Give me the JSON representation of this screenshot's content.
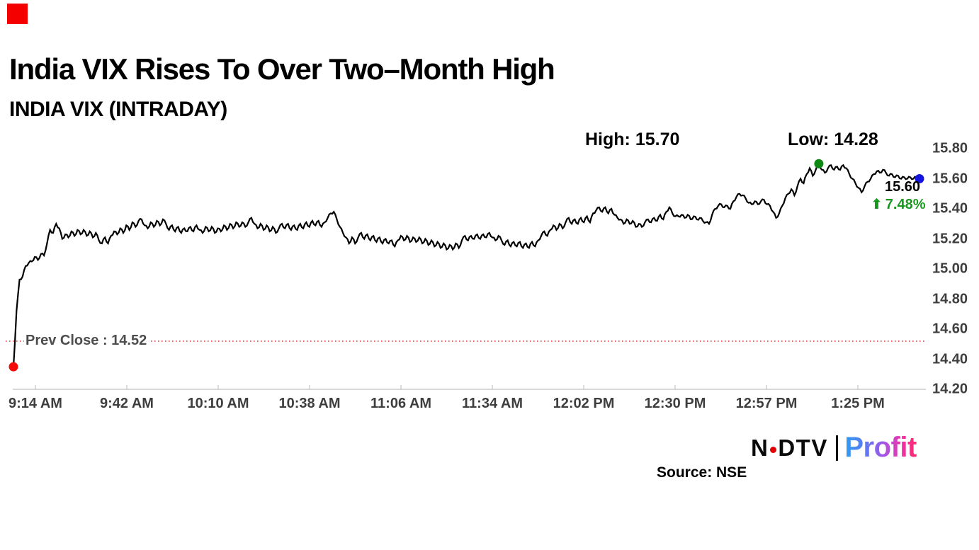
{
  "badge": {
    "color": "#f50000"
  },
  "header": {
    "title": "India VIX Rises To Over Two–Month High",
    "subtitle": "INDIA VIX (INTRADAY)"
  },
  "stats": {
    "high_label": "High: 15.70",
    "low_label": "Low: 14.28"
  },
  "annotation": {
    "last_price": "15.60",
    "arrow": "⬆",
    "change_pct": "7.48%"
  },
  "prev_close_label": "Prev Close : 14.52",
  "footer": {
    "source": "Source: NSE",
    "logo": {
      "n": "N",
      "dtv": "DTV",
      "profit": "Profit"
    }
  },
  "chart_data": {
    "type": "line",
    "title": "INDIA VIX (INTRADAY)",
    "series_name": "India VIX",
    "x_labels": [
      "9:14 AM",
      "9:42 AM",
      "10:10 AM",
      "10:38 AM",
      "11:06 AM",
      "11:34 AM",
      "12:02 PM",
      "12:30 PM",
      "12:57 PM",
      "1:25 PM"
    ],
    "y_ticks": [
      "15.80",
      "15.60",
      "15.40",
      "15.20",
      "15.00",
      "14.80",
      "14.60",
      "14.40",
      "14.20"
    ],
    "y_range": [
      14.2,
      15.8
    ],
    "prev_close": 14.52,
    "open": 14.35,
    "high": 15.7,
    "low": 14.28,
    "last": 15.6,
    "change_pct": 7.48,
    "grid": false,
    "legend": false,
    "line_color": "#000000",
    "axis_color": "#d8d8d8",
    "prev_close_line_color": "#e53535",
    "marker_colors": {
      "open": "#f50a0a",
      "high": "#0e8a14",
      "last": "#1414dd"
    },
    "values": [
      14.35,
      14.72,
      14.93,
      14.95,
      15.02,
      15.04,
      15.05,
      15.08,
      15.06,
      15.1,
      15.09,
      15.17,
      15.26,
      15.24,
      15.3,
      15.27,
      15.2,
      15.23,
      15.21,
      15.25,
      15.22,
      15.26,
      15.23,
      15.26,
      15.22,
      15.25,
      15.21,
      15.24,
      15.19,
      15.17,
      15.21,
      15.17,
      15.22,
      15.25,
      15.23,
      15.27,
      15.24,
      15.29,
      15.26,
      15.31,
      15.28,
      15.32,
      15.33,
      15.29,
      15.27,
      15.31,
      15.28,
      15.32,
      15.29,
      15.33,
      15.3,
      15.26,
      15.29,
      15.25,
      15.28,
      15.24,
      15.27,
      15.25,
      15.28,
      15.25,
      15.29,
      15.26,
      15.24,
      15.28,
      15.25,
      15.28,
      15.24,
      15.27,
      15.25,
      15.29,
      15.26,
      15.3,
      15.27,
      15.31,
      15.28,
      15.31,
      15.28,
      15.31,
      15.34,
      15.3,
      15.27,
      15.3,
      15.26,
      15.29,
      15.25,
      15.28,
      15.24,
      15.27,
      15.3,
      15.27,
      15.3,
      15.26,
      15.29,
      15.26,
      15.3,
      15.27,
      15.31,
      15.28,
      15.32,
      15.29,
      15.32,
      15.28,
      15.31,
      15.34,
      15.37,
      15.38,
      15.33,
      15.28,
      15.24,
      15.21,
      15.17,
      15.21,
      15.17,
      15.21,
      15.24,
      15.2,
      15.23,
      15.19,
      15.22,
      15.18,
      15.21,
      15.17,
      15.2,
      15.17,
      15.19,
      15.15,
      15.19,
      15.22,
      15.19,
      15.22,
      15.18,
      15.21,
      15.18,
      15.21,
      15.17,
      15.2,
      15.16,
      15.19,
      15.15,
      15.18,
      15.14,
      15.17,
      15.13,
      15.16,
      15.13,
      15.17,
      15.14,
      15.19,
      15.22,
      15.19,
      15.22,
      15.2,
      15.23,
      15.2,
      15.23,
      15.21,
      15.24,
      15.21,
      15.19,
      15.22,
      15.19,
      15.16,
      15.19,
      15.15,
      15.18,
      15.15,
      15.18,
      15.14,
      15.17,
      15.14,
      15.18,
      15.15,
      15.19,
      15.22,
      15.25,
      15.22,
      15.26,
      15.29,
      15.26,
      15.3,
      15.27,
      15.31,
      15.34,
      15.3,
      15.33,
      15.3,
      15.34,
      15.31,
      15.35,
      15.31,
      15.37,
      15.39,
      15.41,
      15.38,
      15.41,
      15.37,
      15.4,
      15.36,
      15.34,
      15.33,
      15.3,
      15.33,
      15.3,
      15.32,
      15.28,
      15.3,
      15.28,
      15.31,
      15.33,
      15.31,
      15.34,
      15.32,
      15.36,
      15.33,
      15.38,
      15.41,
      15.37,
      15.35,
      15.35,
      15.36,
      15.34,
      15.36,
      15.33,
      15.35,
      15.33,
      15.34,
      15.32,
      15.31,
      15.3,
      15.36,
      15.4,
      15.42,
      15.43,
      15.41,
      15.42,
      15.4,
      15.45,
      15.48,
      15.5,
      15.49,
      15.47,
      15.44,
      15.43,
      15.45,
      15.43,
      15.45,
      15.46,
      15.43,
      15.42,
      15.38,
      15.34,
      15.37,
      15.42,
      15.47,
      15.5,
      15.53,
      15.49,
      15.55,
      15.6,
      15.57,
      15.63,
      15.67,
      15.62,
      15.66,
      15.7,
      15.66,
      15.64,
      15.67,
      15.69,
      15.66,
      15.68,
      15.66,
      15.69,
      15.67,
      15.63,
      15.6,
      15.57,
      15.54,
      15.51,
      15.55,
      15.58,
      15.6,
      15.63,
      15.65,
      15.64,
      15.66,
      15.64,
      15.62,
      15.63,
      15.61,
      15.62,
      15.6,
      15.61,
      15.6,
      15.61,
      15.6,
      15.61,
      15.6
    ]
  }
}
